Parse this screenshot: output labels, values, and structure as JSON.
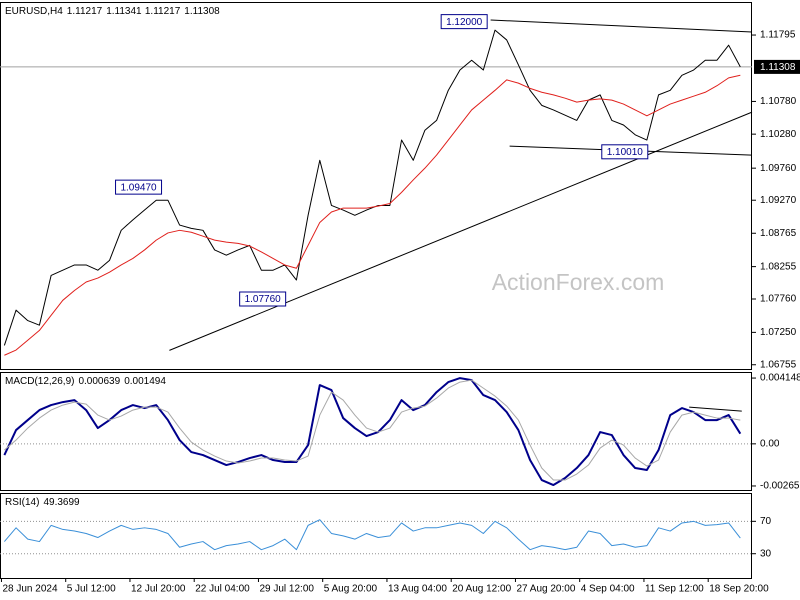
{
  "chart_data": [
    {
      "type": "line",
      "title": "EURUSD,H4",
      "header_values": [
        1.11217,
        1.11341,
        1.11217,
        1.11308
      ],
      "watermark": "ActionForex.com",
      "x": [
        3,
        11,
        19,
        27,
        35,
        43,
        51,
        59,
        67,
        75,
        83,
        91,
        99,
        107,
        115,
        123,
        131,
        139,
        147,
        155,
        163,
        171,
        179,
        187,
        195,
        203,
        211,
        219,
        227,
        235,
        243,
        251,
        259,
        267,
        275,
        283,
        291,
        299,
        307,
        315,
        323,
        331,
        339,
        347,
        355,
        363,
        371,
        379,
        387,
        395,
        403,
        411,
        419,
        427,
        435,
        443,
        451,
        459,
        467,
        475,
        483,
        491,
        499,
        507
      ],
      "xlim": [
        0,
        515
      ],
      "ylim": [
        1.0669,
        1.123
      ],
      "yticks": [
        1.11795,
        {
          "value": 1.1078,
          "label": "1.10780"
        },
        {
          "value": 1.1028,
          "label": "1.10280"
        },
        {
          "value": 1.0976,
          "label": "1.09760"
        },
        {
          "value": 1.0927,
          "label": "1.09270"
        },
        1.08765,
        1.08255,
        {
          "value": 1.0776,
          "label": "1.07760"
        },
        {
          "value": 1.0725,
          "label": "1.07250"
        },
        1.06755
      ],
      "price_line": true,
      "series": [
        {
          "color": "#000000",
          "width": 1,
          "values": [
            1.0705,
            1.0759,
            1.0743,
            1.0736,
            1.0812,
            1.082,
            1.0828,
            1.0828,
            1.082,
            1.0835,
            1.0881,
            1.0897,
            1.0912,
            1.0927,
            1.0927,
            1.0889,
            1.0884,
            1.0881,
            1.0851,
            1.0843,
            1.0851,
            1.0858,
            1.082,
            1.082,
            1.0828,
            1.0805,
            1.0904,
            1.0988,
            1.0919,
            1.0912,
            1.0904,
            1.0912,
            1.0919,
            1.0919,
            1.1019,
            1.0988,
            1.1034,
            1.1049,
            1.1095,
            1.1126,
            1.1141,
            1.1126,
            1.1187,
            1.1172,
            1.1134,
            1.1095,
            1.1072,
            1.1065,
            1.1057,
            1.1049,
            1.108,
            1.1088,
            1.1049,
            1.1042,
            1.1027,
            1.1019,
            1.1088,
            1.1095,
            1.1118,
            1.1126,
            1.1141,
            1.1141,
            1.1164,
            1.11308
          ]
        },
        {
          "color": "#e0201c",
          "width": 1,
          "values": [
            1.069,
            1.0698,
            1.0713,
            1.0728,
            1.0751,
            1.0774,
            1.0789,
            1.0802,
            1.0808,
            1.0817,
            1.0828,
            1.0838,
            1.0851,
            1.0866,
            1.0877,
            1.0881,
            1.0878,
            1.0872,
            1.0866,
            1.0863,
            1.0861,
            1.0857,
            1.0848,
            1.0838,
            1.0828,
            1.0823,
            1.0858,
            1.0893,
            1.0909,
            1.0915,
            1.0915,
            1.0915,
            1.0918,
            1.0922,
            1.0939,
            1.0958,
            1.0976,
            1.0996,
            1.1019,
            1.1042,
            1.1065,
            1.108,
            1.1095,
            1.1111,
            1.1106,
            1.1098,
            1.1092,
            1.1088,
            1.1083,
            1.1077,
            1.108,
            1.1082,
            1.108,
            1.1074,
            1.1065,
            1.1056,
            1.1065,
            1.1074,
            1.108,
            1.1086,
            1.1092,
            1.1102,
            1.1114,
            1.1118
          ]
        }
      ],
      "annotations": [
        {
          "x": 335,
          "value": 1.12,
          "label": "1.12000"
        },
        {
          "x": 112,
          "value": 1.0947,
          "label": "1.09470"
        },
        {
          "x": 197,
          "value": 1.0776,
          "label": "1.07760"
        },
        {
          "x": 445,
          "value": 1.1001,
          "label": "1.10010"
        }
      ],
      "trendlines": [
        {
          "x": [
            116,
            515
          ],
          "y": [
            1.06975,
            1.10617
          ]
        },
        {
          "x": [
            336,
            515
          ],
          "y": [
            1.12025,
            1.11841
          ]
        },
        {
          "x": [
            349,
            515
          ],
          "y": [
            1.10097,
            1.09959
          ]
        }
      ]
    },
    {
      "type": "line",
      "title": "MACD(12,26,9)",
      "header_values": [
        0.000639,
        0.001494
      ],
      "ylim": [
        -0.00291,
        0.00453
      ],
      "yticks": [
        0.004148,
        {
          "value": 0,
          "label": "0.00"
        },
        -0.002656
      ],
      "levels": [
        0
      ],
      "series": [
        {
          "color": "#00008b",
          "width": 2,
          "values": [
            -0.000706,
            0.000869,
            0.001499,
            0.002129,
            0.002444,
            0.002633,
            0.002759,
            0.002129,
            0.000995,
            0.001499,
            0.002129,
            0.002444,
            0.002255,
            0.002444,
            0.001499,
            0.000239,
            -0.000517,
            -0.000706,
            -0.001021,
            -0.001336,
            -0.001147,
            -0.000895,
            -0.000706,
            -0.001021,
            -0.001147,
            -0.001147,
            -7.6e-05,
            0.003704,
            0.003389,
            0.001625,
            0.000995,
            0.000491,
            0.000743,
            0.001499,
            0.002759,
            0.002129,
            0.002444,
            0.003263,
            0.003893,
            0.004145,
            0.004019,
            0.003074,
            0.002759,
            0.002003,
            0.000869,
            -0.001021,
            -0.002281,
            -0.002596,
            -0.002155,
            -0.001525,
            -0.000706,
            0.000743,
            0.000554,
            -0.000706,
            -0.001525,
            -0.001651,
            -0.000391,
            0.001814,
            0.002255,
            0.002003,
            0.001499,
            0.001499,
            0.001814,
            0.000639
          ]
        },
        {
          "color": "#a8a8a8",
          "width": 1,
          "values": [
            -0.000391,
            0.000239,
            0.000995,
            0.001625,
            0.002129,
            0.002444,
            0.002633,
            0.002507,
            0.001814,
            0.001499,
            0.001751,
            0.002129,
            0.002318,
            0.002318,
            0.002003,
            0.000995,
            0.000113,
            -0.000391,
            -0.000769,
            -0.001084,
            -0.00121,
            -0.001084,
            -0.000895,
            -0.000895,
            -0.001021,
            -0.001084,
            -0.000769,
            0.001814,
            0.003263,
            0.002759,
            0.001814,
            0.000995,
            0.000743,
            0.000995,
            0.002003,
            0.002255,
            0.002381,
            0.002885,
            0.003515,
            0.003893,
            0.004019,
            0.003515,
            0.003011,
            0.002381,
            0.001499,
            -7.6e-05,
            -0.001525,
            -0.002281,
            -0.002281,
            -0.001903,
            -0.001336,
            -0.000265,
            0.000239,
            -7.6e-05,
            -0.000895,
            -0.001399,
            -0.001021,
            0.000743,
            0.001814,
            0.002003,
            0.001814,
            0.001625,
            0.001625,
            0.001494
          ]
        }
      ],
      "trendlines": [
        {
          "x": [
            472,
            508
          ],
          "y": [
            0.002318,
            0.002066
          ]
        }
      ]
    },
    {
      "type": "line",
      "title": "RSI(14)",
      "header_values": [
        49.3699
      ],
      "ylim": [
        0,
        105
      ],
      "yticks": [
        70,
        30
      ],
      "levels": [
        70,
        30
      ],
      "series": [
        {
          "color": "#3a8fd8",
          "width": 1,
          "values": [
            45,
            62,
            48,
            45,
            65,
            60,
            58,
            55,
            50,
            58,
            65,
            60,
            62,
            60,
            55,
            38,
            42,
            45,
            35,
            40,
            42,
            45,
            35,
            40,
            48,
            35,
            65,
            72,
            55,
            52,
            48,
            55,
            50,
            52,
            68,
            58,
            62,
            62,
            65,
            68,
            65,
            55,
            70,
            62,
            48,
            35,
            40,
            38,
            35,
            38,
            58,
            55,
            40,
            42,
            38,
            40,
            62,
            58,
            68,
            70,
            65,
            66,
            68,
            49.3699
          ]
        }
      ],
      "xticks": [
        {
          "value": 1,
          "label": "28 Jun 2024"
        },
        {
          "value": 45,
          "label": "5 Jul 12:00"
        },
        {
          "value": 89,
          "label": "12 Jul 20:00"
        },
        {
          "value": 133,
          "label": "22 Jul 04:00"
        },
        {
          "value": 177,
          "label": "29 Jul 12:00"
        },
        {
          "value": 221,
          "label": "5 Aug 20:00"
        },
        {
          "value": 265,
          "label": "13 Aug 04:00"
        },
        {
          "value": 309,
          "label": "20 Aug 12:00"
        },
        {
          "value": 353,
          "label": "27 Aug 20:00"
        },
        {
          "value": 397,
          "label": "4 Sep 04:00"
        },
        {
          "value": 441,
          "label": "11 Sep 12:00"
        },
        {
          "value": 485,
          "label": "18 Sep 20:00"
        }
      ]
    }
  ]
}
